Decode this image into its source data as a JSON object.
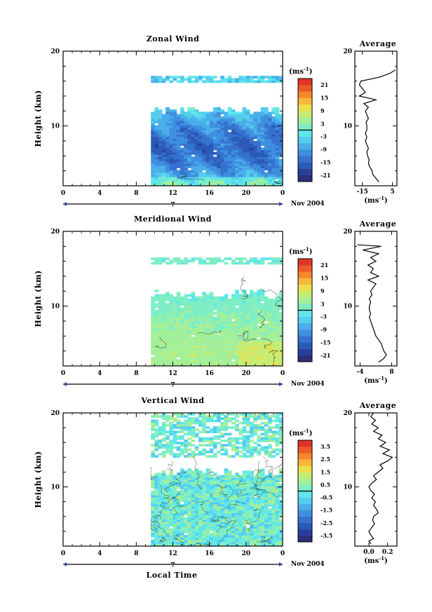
{
  "colors": {
    "colormap": [
      "#2b2f78",
      "#2a3f9a",
      "#2c5ab9",
      "#3672cf",
      "#3f8fe0",
      "#4aaeea",
      "#55cdef",
      "#5fe6ea",
      "#7feec5",
      "#a3ef9a",
      "#c8ec72",
      "#ecdf4c",
      "#f7b73a",
      "#f3882d",
      "#ec5a28",
      "#e0342a"
    ],
    "profile_line": "#000000",
    "contour": "#000000"
  },
  "date_label": "Nov 2004",
  "day_label": "7",
  "xlabel": "Local Time",
  "chart_data": [
    {
      "type": "heatmap",
      "name": "zonal",
      "title": "Zonal Wind",
      "ylabel": "Height (km)",
      "xlim": [
        0,
        24
      ],
      "ylim": [
        2,
        20
      ],
      "xticks": [
        "0",
        "4",
        "8",
        "12",
        "16",
        "20",
        "0"
      ],
      "yticks": [
        "20",
        "10"
      ],
      "colorbar": {
        "unit": "(ms",
        "unit_sup": "-1",
        "range": [
          -24,
          24
        ],
        "labels": [
          "21",
          "15",
          "9",
          "3",
          "-3",
          "-9",
          "-15",
          "-21"
        ]
      },
      "data_extent": {
        "x": [
          9.6,
          24.0
        ],
        "y": [
          2.0,
          12.5
        ]
      },
      "upper_layer": {
        "y": [
          15.8,
          16.5
        ],
        "x": [
          9.6,
          24.0
        ]
      },
      "profile": {
        "title": "Average",
        "xlim": [
          -20,
          8
        ],
        "xticks": [
          "-15",
          "5"
        ],
        "unit": "(ms",
        "unit_sup": "-1",
        "points": [
          [
            -4,
            2.5
          ],
          [
            -6,
            3
          ],
          [
            -8,
            3.5
          ],
          [
            -8.5,
            4
          ],
          [
            -10,
            4.5
          ],
          [
            -11,
            5
          ],
          [
            -10.5,
            5.5
          ],
          [
            -11.5,
            6
          ],
          [
            -12,
            6.5
          ],
          [
            -11,
            7
          ],
          [
            -12,
            7.5
          ],
          [
            -13,
            8
          ],
          [
            -12,
            8.5
          ],
          [
            -13,
            9
          ],
          [
            -12,
            9.5
          ],
          [
            -12,
            10
          ],
          [
            -12.5,
            10.5
          ],
          [
            -11,
            11
          ],
          [
            -12,
            11.5
          ],
          [
            -13,
            12
          ],
          [
            -11,
            12.5
          ],
          [
            -14,
            13
          ],
          [
            -6,
            13.5
          ],
          [
            -17,
            14
          ],
          [
            -13,
            14.5
          ],
          [
            -15,
            15
          ],
          [
            -17,
            15.5
          ],
          [
            -16,
            16
          ],
          [
            -4,
            16.5
          ],
          [
            3,
            17
          ],
          [
            7,
            17.5
          ]
        ]
      }
    },
    {
      "type": "heatmap",
      "name": "meridional",
      "title": "Meridional Wind",
      "ylabel": "Height (km)",
      "xlim": [
        0,
        24
      ],
      "ylim": [
        2,
        20
      ],
      "xticks": [
        "0",
        "4",
        "8",
        "12",
        "16",
        "20",
        "0"
      ],
      "yticks": [
        "20",
        "10"
      ],
      "colorbar": {
        "unit": "(ms",
        "unit_sup": "-1",
        "range": [
          -24,
          24
        ],
        "labels": [
          "21",
          "15",
          "9",
          "3",
          "-3",
          "-9",
          "-15",
          "-21"
        ]
      },
      "data_extent": {
        "x": [
          9.6,
          24.0
        ],
        "y": [
          2.0,
          12.0
        ]
      },
      "upper_layer": {
        "y": [
          15.6,
          16.3
        ],
        "x": [
          9.6,
          24.0
        ]
      },
      "profile": {
        "title": "Average",
        "xlim": [
          -6,
          10
        ],
        "xticks": [
          "-4",
          "8"
        ],
        "unit": "(ms",
        "unit_sup": "-1",
        "points": [
          [
            3,
            2.5
          ],
          [
            5,
            3
          ],
          [
            6,
            3.5
          ],
          [
            5,
            4
          ],
          [
            4.5,
            4.5
          ],
          [
            4,
            5
          ],
          [
            3,
            5.5
          ],
          [
            2,
            6
          ],
          [
            1.5,
            6.5
          ],
          [
            1,
            7
          ],
          [
            0.5,
            7.5
          ],
          [
            0,
            8
          ],
          [
            -0.5,
            8.5
          ],
          [
            0,
            9
          ],
          [
            -0.5,
            9.5
          ],
          [
            -0.5,
            10
          ],
          [
            0,
            10.5
          ],
          [
            -0.5,
            11
          ],
          [
            0.5,
            11.5
          ],
          [
            0,
            12
          ],
          [
            1,
            12.5
          ],
          [
            2,
            13
          ],
          [
            -1,
            13.5
          ],
          [
            3,
            14
          ],
          [
            0,
            14.5
          ],
          [
            1,
            15
          ],
          [
            -1,
            15.5
          ],
          [
            2,
            16
          ],
          [
            0,
            16.5
          ],
          [
            3,
            17
          ],
          [
            -3,
            17.5
          ],
          [
            4,
            18
          ],
          [
            -5,
            18.2
          ]
        ]
      }
    },
    {
      "type": "heatmap",
      "name": "vertical",
      "title": "Vertical Wind",
      "ylabel": "Height (km)",
      "xlabel": "Local Time",
      "xlim": [
        0,
        24
      ],
      "ylim": [
        2,
        20
      ],
      "xticks": [
        "0",
        "4",
        "8",
        "12",
        "16",
        "20",
        "0"
      ],
      "yticks": [
        "20",
        "10"
      ],
      "colorbar": {
        "unit": "(ms",
        "unit_sup": "-1",
        "range": [
          -4,
          4
        ],
        "labels": [
          "3.5",
          "2.5",
          "1.5",
          "0.5",
          "-0.5",
          "-1.5",
          "-2.5",
          "-3.5"
        ]
      },
      "data_extent": {
        "x": [
          9.6,
          24.0
        ],
        "y": [
          2.0,
          12.5
        ]
      },
      "upper_layer": {
        "y": [
          14.0,
          20.0
        ],
        "x": [
          9.6,
          24.0
        ]
      },
      "profile": {
        "title": "Average",
        "xlim": [
          -0.15,
          0.3
        ],
        "xticks": [
          "0.0",
          "0.2"
        ],
        "unit": "(ms",
        "unit_sup": "-1",
        "points": [
          [
            0.02,
            2.3
          ],
          [
            0.0,
            2.7
          ],
          [
            0.05,
            3
          ],
          [
            0.02,
            3.5
          ],
          [
            0.0,
            4
          ],
          [
            0.03,
            4.5
          ],
          [
            0.06,
            5
          ],
          [
            0.04,
            5.5
          ],
          [
            0.05,
            6
          ],
          [
            0.1,
            6.5
          ],
          [
            0.08,
            7
          ],
          [
            0.05,
            7.5
          ],
          [
            0.07,
            8
          ],
          [
            0.03,
            8.5
          ],
          [
            0.06,
            9
          ],
          [
            0.02,
            9.5
          ],
          [
            0.0,
            10
          ],
          [
            0.03,
            10.5
          ],
          [
            0.08,
            11
          ],
          [
            0.05,
            11.5
          ],
          [
            0.1,
            12
          ],
          [
            0.15,
            12.5
          ],
          [
            0.12,
            13
          ],
          [
            0.2,
            13.5
          ],
          [
            0.25,
            14
          ],
          [
            0.15,
            14.5
          ],
          [
            0.22,
            15
          ],
          [
            0.12,
            15.5
          ],
          [
            0.18,
            16
          ],
          [
            0.1,
            16.5
          ],
          [
            0.14,
            17
          ],
          [
            0.05,
            17.5
          ],
          [
            0.1,
            18
          ],
          [
            0.03,
            18.5
          ],
          [
            0.07,
            19
          ],
          [
            0.02,
            19.5
          ],
          [
            0.05,
            20
          ]
        ]
      }
    }
  ]
}
